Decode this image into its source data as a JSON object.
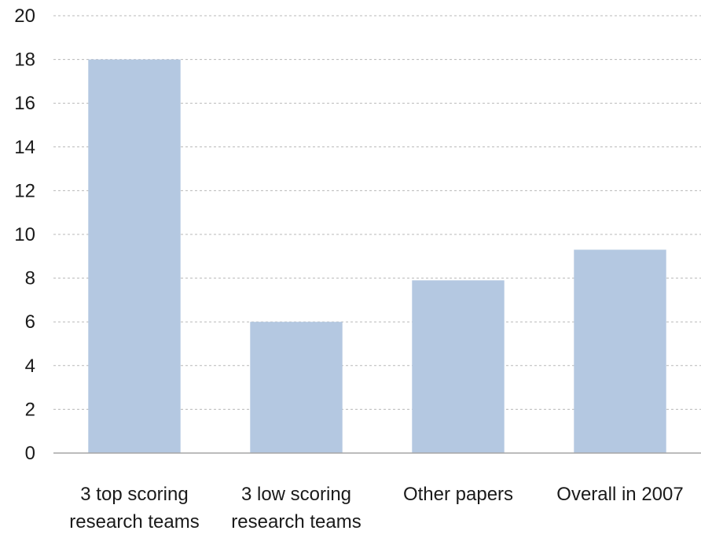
{
  "colors": {
    "bar": "#b4c8e1",
    "grid": "#b8b8b8",
    "axis": "#a6a6a6",
    "text": "#1a1a1a"
  },
  "chart_data": {
    "type": "bar",
    "title": "",
    "xlabel": "",
    "ylabel": "",
    "ylim": [
      0,
      20
    ],
    "y_ticks": [
      0,
      2,
      4,
      6,
      8,
      10,
      12,
      14,
      16,
      18,
      20
    ],
    "grid": true,
    "categories": [
      [
        "3 top scoring",
        "research teams"
      ],
      [
        "3 low scoring",
        "research teams"
      ],
      [
        "Other papers"
      ],
      [
        "Overall in 2007"
      ]
    ],
    "values": [
      18,
      6,
      7.9,
      9.3
    ]
  }
}
